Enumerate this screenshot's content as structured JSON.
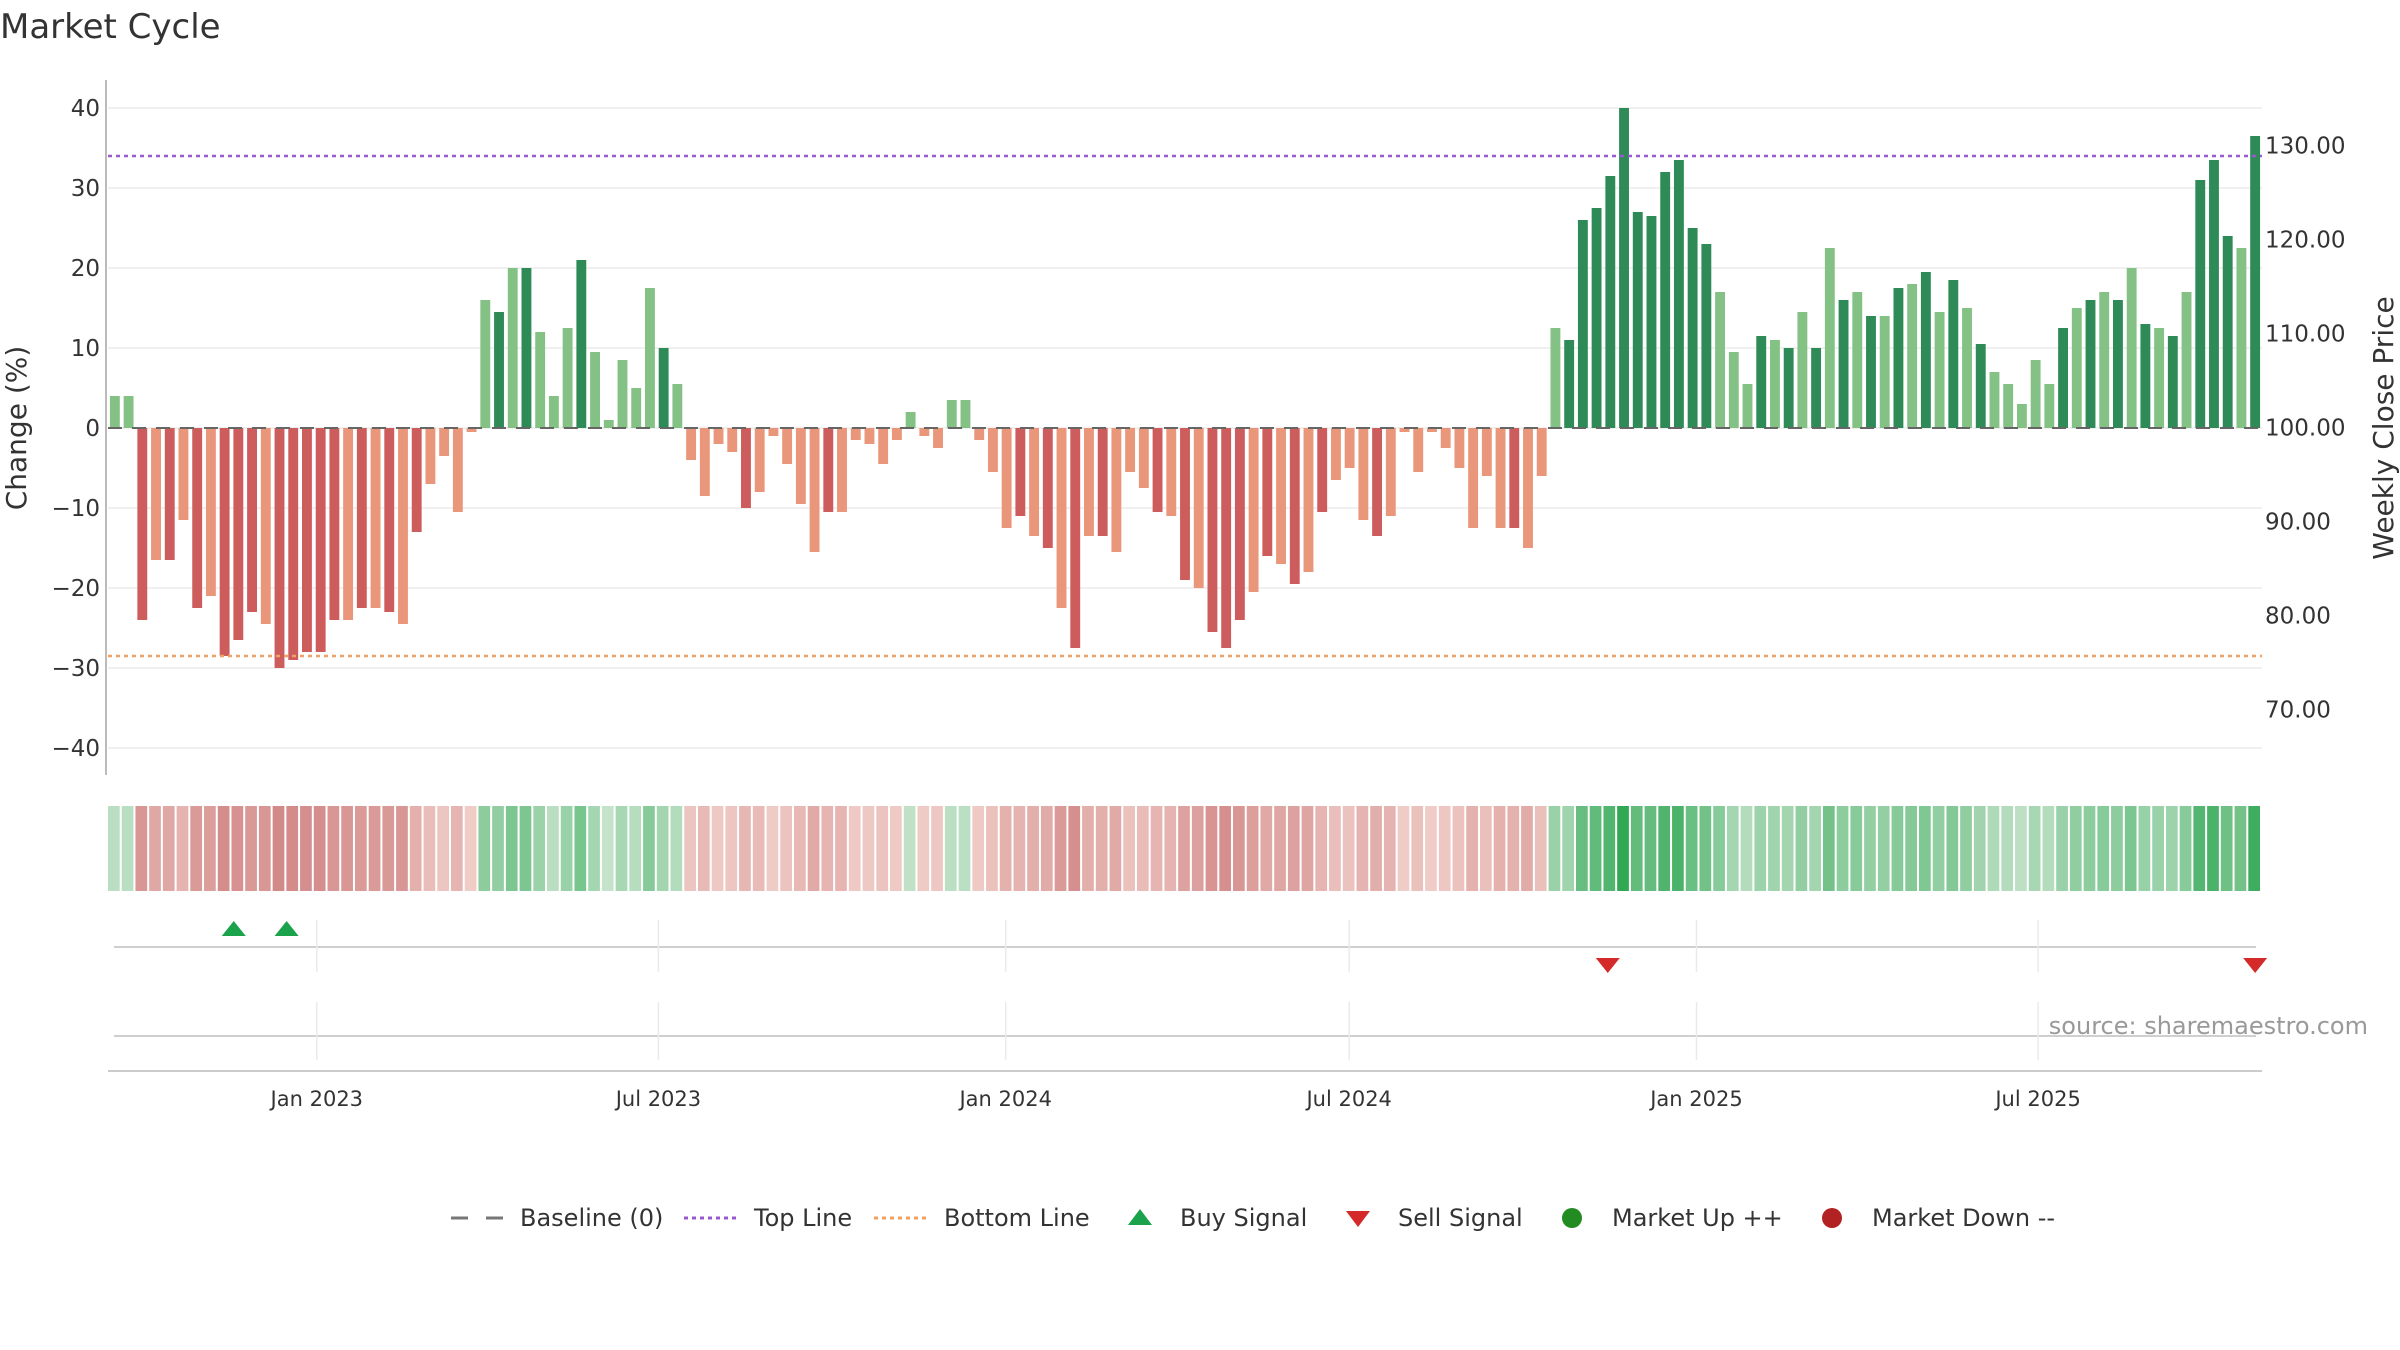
{
  "chart_data": {
    "type": "bar",
    "title": "Market Cycle",
    "ylabel": "Change (%)",
    "y2label": "Weekly Close Price",
    "ylim": [
      -43,
      43
    ],
    "yticks": [
      -40,
      -30,
      -20,
      -10,
      0,
      10,
      20,
      30,
      40
    ],
    "y2ticks": [
      "70.00",
      "80.00",
      "90.00",
      "100.00",
      "110.00",
      "120.00",
      "130.00"
    ],
    "y2lim": [
      63,
      137
    ],
    "top_line": 34,
    "bottom_line": -28.5,
    "x_ticks": [
      "Jan 2023",
      "Jul 2023",
      "Jan 2024",
      "Jul 2024",
      "Jan 2025",
      "Jul 2025"
    ],
    "x_start": "2022-09-16",
    "x_end": "2025-10-24",
    "x_tick_dates": [
      "2023-01-01",
      "2023-07-01",
      "2024-01-01",
      "2024-07-01",
      "2025-01-01",
      "2025-07-01"
    ],
    "values": [
      4,
      4,
      -24,
      -16.5,
      -16.5,
      -11.5,
      -22.5,
      -21,
      -28.5,
      -26.5,
      -23,
      -24.5,
      -30,
      -29,
      -28,
      -28,
      -24,
      -24,
      -22.5,
      -22.5,
      -23,
      -24.5,
      -13,
      -7,
      -3.5,
      -10.5,
      -0.5,
      16,
      14.5,
      20,
      20,
      12,
      4,
      12.5,
      21,
      9.5,
      1,
      8.5,
      5,
      17.5,
      10,
      5.5,
      -4,
      -8.5,
      -2,
      -3,
      -10,
      -8,
      -1,
      -4.5,
      -9.5,
      -15.5,
      -10.5,
      -10.5,
      -1.5,
      -2,
      -4.5,
      -1.5,
      2,
      -1,
      -2.5,
      3.5,
      3.5,
      -1.5,
      -5.5,
      -12.5,
      -11,
      -13.5,
      -15,
      -22.5,
      -27.5,
      -13.5,
      -13.5,
      -15.5,
      -5.5,
      -7.5,
      -10.5,
      -11,
      -19,
      -20,
      -25.5,
      -27.5,
      -24,
      -20.5,
      -16,
      -17,
      -19.5,
      -18,
      -10.5,
      -6.5,
      -5,
      -11.5,
      -13.5,
      -11,
      -0.5,
      -5.5,
      -0.5,
      -2.5,
      -5,
      -12.5,
      -6,
      -12.5,
      -12.5,
      -15,
      -6,
      12.5,
      11,
      26,
      27.5,
      31.5,
      40,
      27,
      26.5,
      32,
      33.5,
      25,
      23,
      17,
      9.5,
      5.5,
      11.5,
      11,
      10,
      14.5,
      10,
      22.5,
      16,
      17,
      14,
      14,
      17.5,
      18,
      19.5,
      14.5,
      18.5,
      15,
      10.5,
      7,
      5.5,
      3,
      8.5,
      5.5,
      12.5,
      15,
      16,
      17,
      16,
      20,
      13,
      12.5,
      11.5,
      17,
      31,
      33.5,
      24,
      22.5,
      36.5
    ],
    "buy_signals": [
      "2022-11-18",
      "2022-12-16"
    ],
    "sell_signals": [
      "2024-11-15",
      "2025-10-24"
    ],
    "colors": {
      "strong_up": "#2e8b57",
      "up": "#84c184",
      "strong_down": "#cd5c5c",
      "down": "#e9967a",
      "top_line": "#9b59d0",
      "bottom_line": "#f0a060",
      "buy": "#1aa34a",
      "sell": "#d42a2a",
      "market_up": "#228b22",
      "market_down": "#b22222"
    },
    "legend": {
      "baseline": "Baseline (0)",
      "top_line": "Top Line",
      "bottom_line": "Bottom Line",
      "buy": "Buy Signal",
      "sell": "Sell Signal",
      "market_up": "Market Up ++",
      "market_down": "Market Down --"
    },
    "source": "source: sharemaestro.com"
  }
}
